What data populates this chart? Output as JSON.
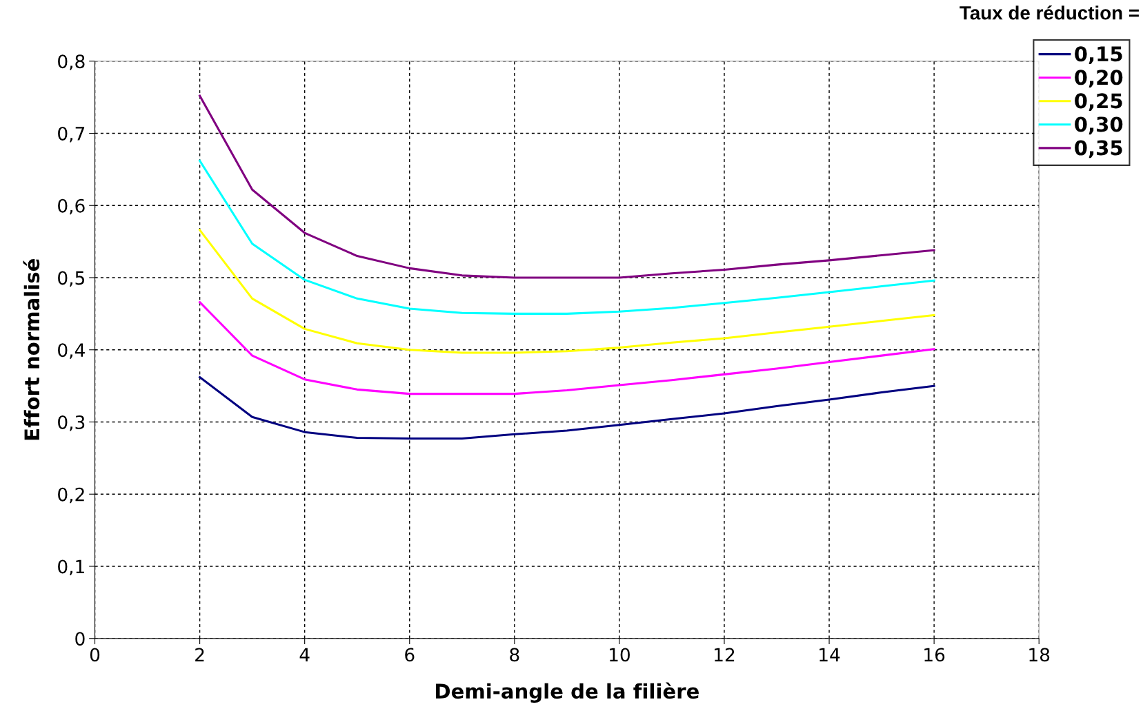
{
  "chart_data": {
    "type": "line",
    "xlabel": "Demi-angle de la filière",
    "ylabel": "Effort normalisé",
    "legend_title": "Taux de réduction =",
    "x": [
      2,
      3,
      4,
      5,
      6,
      7,
      8,
      9,
      10,
      11,
      12,
      13,
      14,
      15,
      16
    ],
    "series": [
      {
        "name": "0,15",
        "color": "#000080",
        "values": [
          0.362,
          0.307,
          0.286,
          0.278,
          0.277,
          0.277,
          0.283,
          0.288,
          0.296,
          0.304,
          0.312,
          0.322,
          0.331,
          0.341,
          0.35
        ]
      },
      {
        "name": "0,20",
        "color": "#ff00ff",
        "values": [
          0.466,
          0.392,
          0.359,
          0.345,
          0.339,
          0.339,
          0.339,
          0.344,
          0.351,
          0.358,
          0.366,
          0.374,
          0.383,
          0.392,
          0.401
        ]
      },
      {
        "name": "0,25",
        "color": "#ffff00",
        "values": [
          0.566,
          0.471,
          0.429,
          0.409,
          0.4,
          0.396,
          0.396,
          0.398,
          0.403,
          0.41,
          0.416,
          0.424,
          0.432,
          0.44,
          0.448
        ]
      },
      {
        "name": "0,30",
        "color": "#00ffff",
        "values": [
          0.662,
          0.547,
          0.497,
          0.471,
          0.457,
          0.451,
          0.45,
          0.45,
          0.453,
          0.458,
          0.465,
          0.472,
          0.48,
          0.488,
          0.496
        ]
      },
      {
        "name": "0,35",
        "color": "#800080",
        "values": [
          0.752,
          0.622,
          0.562,
          0.53,
          0.513,
          0.503,
          0.5,
          0.5,
          0.5,
          0.506,
          0.511,
          0.518,
          0.524,
          0.531,
          0.538
        ]
      }
    ],
    "xlim": [
      0,
      18
    ],
    "xticks": [
      0,
      2,
      4,
      6,
      8,
      10,
      12,
      14,
      16,
      18
    ],
    "ylim": [
      0,
      0.8
    ],
    "yticks": [
      0,
      {
        "value": 0.1,
        "label": "0,1"
      },
      {
        "value": 0.2,
        "label": "0,2"
      },
      {
        "value": 0.3,
        "label": "0,3"
      },
      {
        "value": 0.4,
        "label": "0,4"
      },
      {
        "value": 0.5,
        "label": "0,5"
      },
      {
        "value": 0.6,
        "label": "0,6"
      },
      {
        "value": 0.7,
        "label": "0,7"
      },
      {
        "value": 0.8,
        "label": "0,8"
      }
    ],
    "grid": true,
    "legend": "top right",
    "marker": "none",
    "line_style": "solid"
  }
}
